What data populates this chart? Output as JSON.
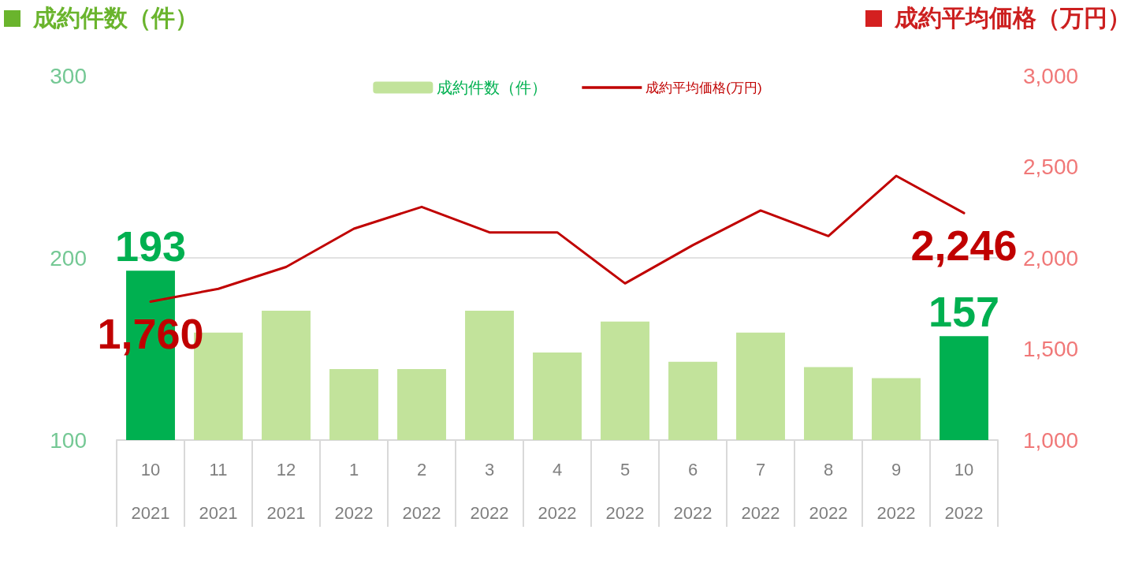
{
  "chart_data": {
    "type": "bar",
    "ylabel": "成約件数（件）",
    "y2label": "成約平均価格（万円）",
    "categories": [
      "10\n2021",
      "11\n2021",
      "12\n2021",
      "1\n2022",
      "2\n2022",
      "3\n2022",
      "4\n2022",
      "5\n2022",
      "6\n2022",
      "7\n2022",
      "8\n2022",
      "9\n2022",
      "10\n2022"
    ],
    "series": [
      {
        "name": "成約件数（件）",
        "color": "#c2e39b",
        "colors": [
          "#00b050",
          "#c2e39b",
          "#c2e39b",
          "#c2e39b",
          "#c2e39b",
          "#c2e39b",
          "#c2e39b",
          "#c2e39b",
          "#c2e39b",
          "#c2e39b",
          "#c2e39b",
          "#c2e39b",
          "#00b050"
        ],
        "values": [
          193,
          159,
          171,
          139,
          139,
          171,
          148,
          165,
          143,
          159,
          140,
          134,
          157
        ],
        "value_labels": [
          "193",
          null,
          null,
          null,
          null,
          null,
          null,
          null,
          null,
          null,
          null,
          null,
          "157"
        ]
      },
      {
        "name": "成約平均価格(万円)",
        "type": "line",
        "axis": "y2",
        "color": "#c00000",
        "values": [
          1760,
          1830,
          1950,
          2160,
          2280,
          2140,
          2140,
          1860,
          2070,
          2260,
          2120,
          2450,
          2246
        ],
        "value_labels": [
          "1,760",
          null,
          null,
          null,
          null,
          null,
          null,
          null,
          null,
          null,
          null,
          null,
          "2,246"
        ]
      }
    ],
    "ylim": [
      100,
      300
    ],
    "yticks": [
      100,
      200,
      300
    ],
    "y2lim": [
      1000,
      3000
    ],
    "y2ticks": [
      {
        "value": 1000,
        "label": "1,000"
      },
      {
        "value": 1500,
        "label": "1,500"
      },
      {
        "value": 2000,
        "label": "2,000"
      },
      {
        "value": 2500,
        "label": "2,500"
      },
      {
        "value": 3000,
        "label": "3,000"
      }
    ],
    "grid": "y",
    "legend": "top",
    "marker": "none"
  }
}
